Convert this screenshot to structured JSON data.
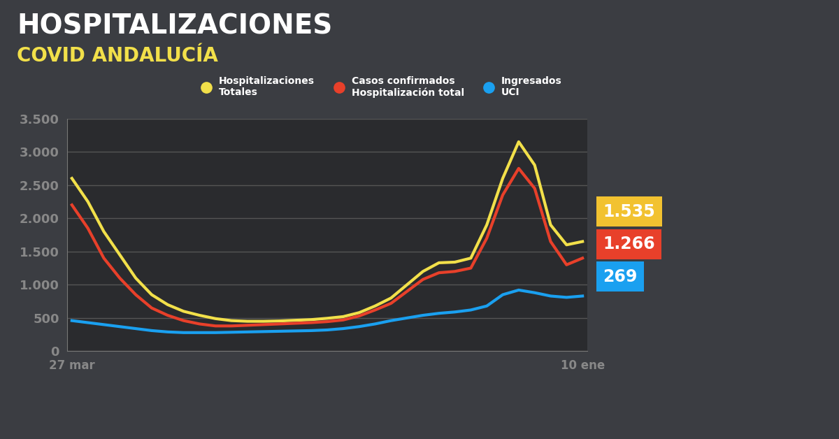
{
  "chart_data": {
    "type": "line",
    "title": "HOSPITALIZACIONES",
    "subtitle": "COVID ANDALUCÍA",
    "categories": [
      "27 mar",
      null,
      null,
      null,
      null,
      null,
      null,
      null,
      null,
      null,
      null,
      null,
      null,
      null,
      null,
      null,
      null,
      null,
      null,
      null,
      null,
      null,
      null,
      null,
      null,
      null,
      null,
      null,
      null,
      null,
      null,
      null,
      "10 ene"
    ],
    "series": [
      {
        "name": "Hospitalizaciones\nTotales",
        "color": "#f2e04a",
        "values": [
          2600,
          2250,
          1800,
          1450,
          1100,
          850,
          700,
          600,
          540,
          490,
          460,
          450,
          450,
          455,
          465,
          475,
          495,
          520,
          580,
          680,
          800,
          1000,
          1200,
          1330,
          1340,
          1400,
          1900,
          2600,
          3150,
          2800,
          1900,
          1600,
          1650
        ]
      },
      {
        "name": "Casos confirmados\nHospitalización total",
        "color": "#e8402a",
        "values": [
          2200,
          1850,
          1400,
          1100,
          850,
          650,
          540,
          460,
          410,
          380,
          380,
          390,
          400,
          410,
          420,
          430,
          445,
          470,
          530,
          620,
          720,
          900,
          1080,
          1180,
          1200,
          1250,
          1700,
          2350,
          2750,
          2450,
          1650,
          1300,
          1400
        ]
      },
      {
        "name": "Ingresados\nUCI",
        "color": "#1aa0f0",
        "values": [
          460,
          430,
          400,
          370,
          340,
          310,
          290,
          280,
          280,
          280,
          285,
          290,
          295,
          300,
          305,
          310,
          320,
          340,
          370,
          410,
          460,
          500,
          540,
          570,
          590,
          620,
          680,
          850,
          920,
          880,
          830,
          810,
          830
        ]
      }
    ],
    "annotations": [
      {
        "text": "1.535",
        "color": "#f2c230"
      },
      {
        "text": "1.266",
        "color": "#e8402a"
      },
      {
        "text": "269",
        "color": "#1aa0f0"
      }
    ],
    "ylim": [
      0,
      3500
    ],
    "yticks": [
      0,
      500,
      {
        "value": 1000,
        "label": "1.000"
      },
      {
        "value": 1500,
        "label": "1.500"
      },
      {
        "value": 2000,
        "label": "2.000"
      },
      {
        "value": 2500,
        "label": "2.500"
      },
      {
        "value": 3000,
        "label": "3.000"
      },
      {
        "value": 3500,
        "label": "3.500"
      }
    ],
    "grid": true,
    "legend": "upper center"
  }
}
